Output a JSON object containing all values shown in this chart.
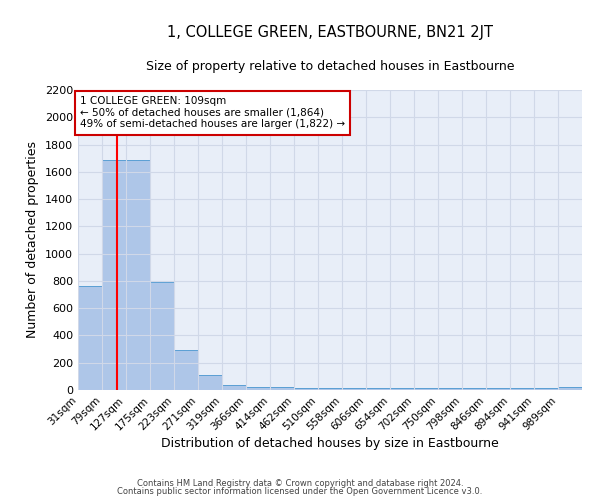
{
  "title": "1, COLLEGE GREEN, EASTBOURNE, BN21 2JT",
  "subtitle": "Size of property relative to detached houses in Eastbourne",
  "xlabel": "Distribution of detached houses by size in Eastbourne",
  "ylabel": "Number of detached properties",
  "bar_values": [
    760,
    1690,
    1690,
    790,
    295,
    110,
    35,
    25,
    20,
    15,
    15,
    15,
    15,
    15,
    15,
    15,
    15,
    15,
    15,
    15,
    20
  ],
  "bin_edges": [
    31,
    79,
    127,
    175,
    223,
    271,
    319,
    366,
    414,
    462,
    510,
    558,
    606,
    654,
    702,
    750,
    798,
    846,
    894,
    941,
    989,
    1037
  ],
  "tick_labels": [
    "31sqm",
    "79sqm",
    "127sqm",
    "175sqm",
    "223sqm",
    "271sqm",
    "319sqm",
    "366sqm",
    "414sqm",
    "462sqm",
    "510sqm",
    "558sqm",
    "606sqm",
    "654sqm",
    "702sqm",
    "750sqm",
    "798sqm",
    "846sqm",
    "894sqm",
    "941sqm",
    "989sqm"
  ],
  "bar_color": "#aec6e8",
  "bar_edge_color": "#5a9fd4",
  "background_color": "#e8eef8",
  "grid_color": "#d0d8e8",
  "red_line_x": 109,
  "annotation_text": "1 COLLEGE GREEN: 109sqm\n← 50% of detached houses are smaller (1,864)\n49% of semi-detached houses are larger (1,822) →",
  "annotation_box_color": "#ffffff",
  "annotation_box_edge": "#cc0000",
  "ylim": [
    0,
    2200
  ],
  "yticks": [
    0,
    200,
    400,
    600,
    800,
    1000,
    1200,
    1400,
    1600,
    1800,
    2000,
    2200
  ],
  "footer_line1": "Contains HM Land Registry data © Crown copyright and database right 2024.",
  "footer_line2": "Contains public sector information licensed under the Open Government Licence v3.0."
}
